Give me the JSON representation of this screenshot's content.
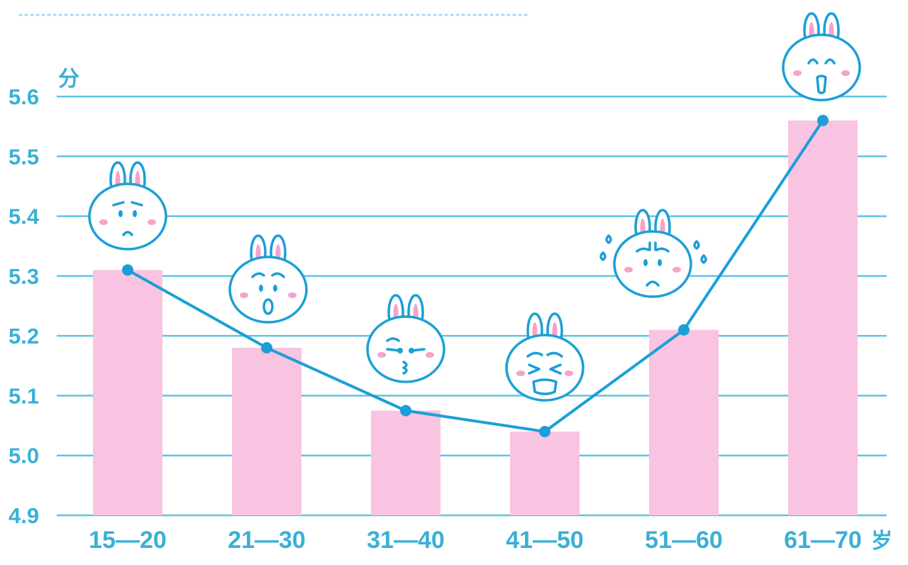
{
  "chart_data": {
    "type": "bar",
    "categories": [
      "15—20",
      "21—30",
      "31—40",
      "41—50",
      "51—60",
      "61—70"
    ],
    "series": [
      {
        "type": "bar",
        "values": [
          5.31,
          5.18,
          5.075,
          5.04,
          5.21,
          5.56
        ]
      },
      {
        "type": "line",
        "values": [
          5.31,
          5.18,
          5.075,
          5.04,
          5.21,
          5.56
        ]
      }
    ],
    "yticks": [
      "4.9",
      "5.0",
      "5.1",
      "5.2",
      "5.3",
      "5.4",
      "5.5",
      "5.6"
    ],
    "ylim": [
      4.9,
      5.6
    ],
    "ylabel": "分",
    "xlabel": "岁",
    "grid": true,
    "colors": {
      "bar": "#f9c3e2",
      "line": "#1b9fd6",
      "grid": "#5fc4e4",
      "text": "#3ab0d6",
      "dots": "#a9d8ee"
    },
    "icons": [
      "worried-bunny-icon",
      "surprised-bunny-icon",
      "kissing-bunny-icon",
      "squinting-bunny-icon",
      "sweating-bunny-icon",
      "happy-bunny-icon"
    ]
  }
}
